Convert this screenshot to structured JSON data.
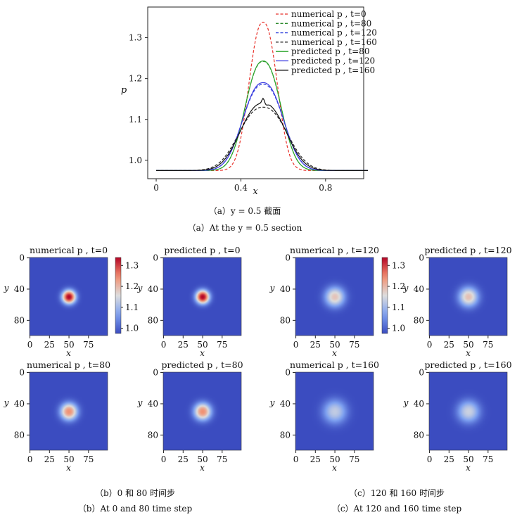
{
  "top_caption_cn": "（a）y = 0.5 截面",
  "top_caption_en": "（a）At the y = 0.5 section",
  "left_caption_cn": "（b）0 和 80 时间步",
  "left_caption_en": "（b）At 0 and 80 time step",
  "right_caption_cn": "（c）120 和 160 时间步",
  "right_caption_en": "（c）At 120 and 160 time step",
  "colors": {
    "numerical_t0": "#e8322b",
    "numerical_t80": "#2e8b2e",
    "numerical_t120": "#3344dd",
    "numerical_t160": "#222222",
    "predicted_t80": "#2aa52a",
    "predicted_t120": "#3a3ae0",
    "predicted_t160": "#111111"
  },
  "chart_data": [
    {
      "type": "line",
      "id": "section",
      "xlabel": "x",
      "ylabel": "p",
      "xlim": [
        -0.04,
        0.98
      ],
      "ylim": [
        0.955,
        1.375
      ],
      "xticks": [
        "0",
        "0.4",
        "0.8"
      ],
      "xtick_values": [
        0.0,
        0.4,
        0.8
      ],
      "yticks": [
        "1.0",
        "1.1",
        "1.2",
        "1.3"
      ],
      "ytick_values": [
        1.0,
        1.1,
        1.2,
        1.3
      ],
      "legend_position": "top-right",
      "baseline": 0.975,
      "center": 0.505,
      "series": [
        {
          "name": "numerical p , t=0",
          "peak": 1.338,
          "width": 0.065,
          "dashed": true,
          "color_key": "numerical_t0"
        },
        {
          "name": "numerical p , t=80",
          "peak": 1.242,
          "width": 0.082,
          "dashed": true,
          "color_key": "numerical_t80"
        },
        {
          "name": "numerical p , t=120",
          "peak": 1.186,
          "width": 0.094,
          "dashed": true,
          "color_key": "numerical_t120"
        },
        {
          "name": "numerical p , t=160",
          "peak": 1.13,
          "width": 0.111,
          "dashed": true,
          "color_key": "numerical_t160"
        },
        {
          "name": "predicted p , t=80",
          "peak": 1.243,
          "width": 0.082,
          "dashed": false,
          "color_key": "predicted_t80"
        },
        {
          "name": "predicted p , t=120",
          "peak": 1.19,
          "width": 0.093,
          "dashed": false,
          "color_key": "predicted_t120"
        },
        {
          "name": "predicted p , t=160",
          "peak": 1.14,
          "width": 0.104,
          "dashed": false,
          "color_key": "predicted_t160",
          "spike": 0.012
        }
      ]
    },
    {
      "type": "heatmap",
      "grid_size": 100,
      "xticks": [
        "0",
        "25",
        "50",
        "75"
      ],
      "xtick_values": [
        0,
        25,
        50,
        75
      ],
      "yticks": [
        "0",
        "40",
        "80"
      ],
      "ytick_values": [
        0,
        40,
        80
      ],
      "xlabel": "x",
      "ylabel": "y",
      "colormap": "coolwarm",
      "colorbar_range": [
        0.975,
        1.338
      ],
      "colorbar_ticks": [
        "1.0",
        "1.1",
        "1.2",
        "1.3"
      ],
      "colorbar_tick_values": [
        1.0,
        1.1,
        1.2,
        1.3
      ],
      "baseline": 0.975,
      "center": [
        50,
        50
      ],
      "panels": [
        {
          "id": "hm1",
          "title": "numerical p , t=0",
          "peak": 1.338,
          "sigma": 6.5
        },
        {
          "id": "hm2",
          "title": "predicted p , t=0",
          "peak": 1.338,
          "sigma": 6.5
        },
        {
          "id": "hm3",
          "title": "numerical p , t=120",
          "peak": 1.186,
          "sigma": 9.4
        },
        {
          "id": "hm4",
          "title": "predicted p , t=120",
          "peak": 1.19,
          "sigma": 9.3
        },
        {
          "id": "hm5",
          "title": "numerical p , t=80",
          "peak": 1.242,
          "sigma": 8.2
        },
        {
          "id": "hm6",
          "title": "predicted p , t=80",
          "peak": 1.243,
          "sigma": 8.2
        },
        {
          "id": "hm7",
          "title": "numerical p , t=160",
          "peak": 1.13,
          "sigma": 11.1
        },
        {
          "id": "hm8",
          "title": "predicted p , t=160",
          "peak": 1.14,
          "sigma": 10.4
        }
      ]
    }
  ]
}
